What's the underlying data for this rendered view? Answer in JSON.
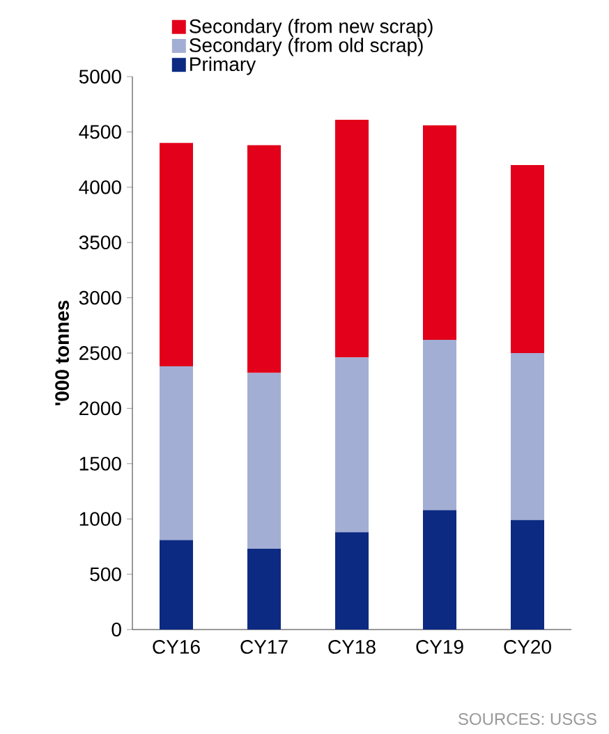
{
  "chart_data": {
    "type": "bar",
    "stacked": true,
    "ylabel": "'000 tonnes",
    "categories": [
      "CY16",
      "CY17",
      "CY18",
      "CY19",
      "CY20"
    ],
    "series": [
      {
        "name": "Primary",
        "color": "#0c2a82",
        "values": [
          810,
          730,
          880,
          1080,
          990
        ]
      },
      {
        "name": "Secondary (from old scrap)",
        "color": "#a3aed4",
        "values": [
          1570,
          1590,
          1580,
          1540,
          1510
        ]
      },
      {
        "name": "Secondary (from new scrap)",
        "color": "#e2001a",
        "values": [
          2020,
          2060,
          2150,
          1940,
          1700
        ]
      }
    ],
    "ylim": [
      0,
      5000
    ],
    "yticks": [
      0,
      500,
      1000,
      1500,
      2000,
      2500,
      3000,
      3500,
      4000,
      4500,
      5000
    ],
    "grid": false,
    "legend": "top",
    "annotations": [
      "SOURCES: USGS"
    ]
  }
}
